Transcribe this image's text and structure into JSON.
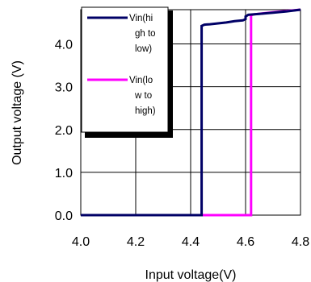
{
  "chart_data": {
    "type": "line",
    "title": "",
    "xlabel": "Input voltage(V)",
    "ylabel": "Output voltage (V)",
    "xlim": [
      4.0,
      4.8
    ],
    "ylim": [
      0.0,
      4.8
    ],
    "xticks": [
      "4.0",
      "4.2",
      "4.4",
      "4.6",
      "4.8"
    ],
    "yticks": [
      "0.0",
      "1.0",
      "2.0",
      "3.0",
      "4.0"
    ],
    "grid": true,
    "legend": "top-left",
    "series": [
      {
        "name": "Vin(high to low)",
        "legend_lines": [
          "Vin(hi",
          "gh to",
          "low)"
        ],
        "color": "#000066",
        "x": [
          4.0,
          4.44,
          4.44,
          4.45,
          4.47,
          4.5,
          4.53,
          4.56,
          4.59,
          4.6,
          4.6,
          4.61,
          4.65,
          4.7,
          4.75,
          4.8
        ],
        "y": [
          0.0,
          0.0,
          4.42,
          4.45,
          4.46,
          4.48,
          4.5,
          4.53,
          4.55,
          4.58,
          4.64,
          4.68,
          4.7,
          4.73,
          4.76,
          4.8
        ]
      },
      {
        "name": "Vin(low to high)",
        "legend_lines": [
          "Vin(lo",
          "w to",
          "high)"
        ],
        "color": "#ff00ff",
        "x": [
          4.0,
          4.62,
          4.62,
          4.63,
          4.66,
          4.7,
          4.75,
          4.8
        ],
        "y": [
          0.0,
          0.0,
          4.67,
          4.69,
          4.71,
          4.74,
          4.77,
          4.8
        ]
      }
    ]
  }
}
